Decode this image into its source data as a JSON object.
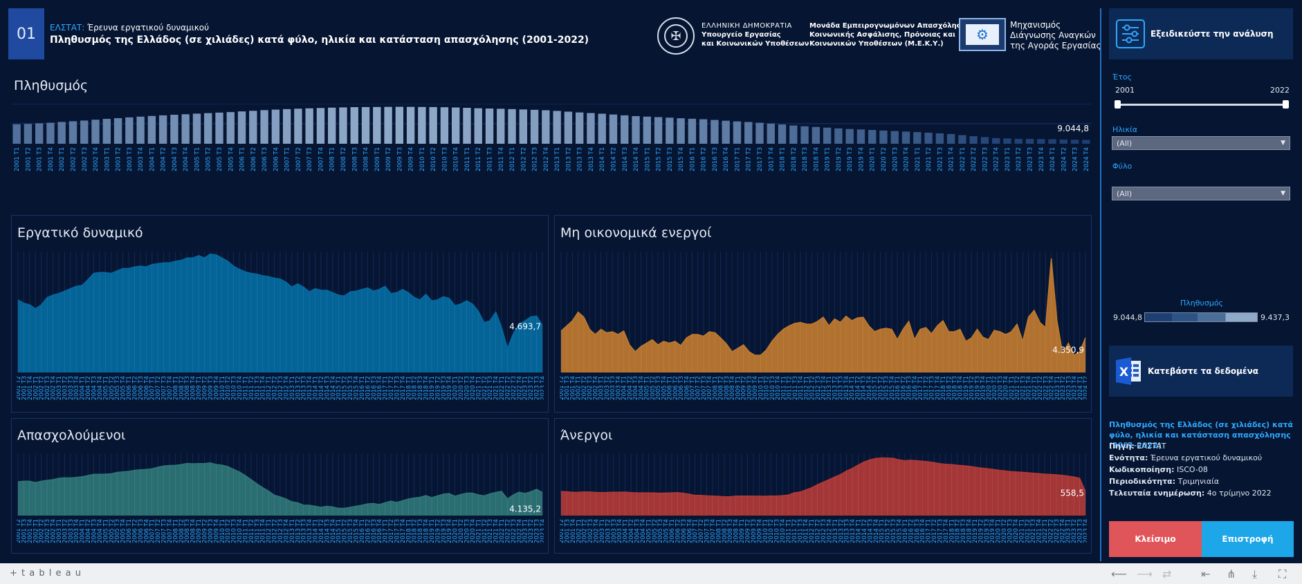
{
  "header": {
    "number": "01",
    "source_prefix": "ΕΛΣΤΑΤ:",
    "source_rest": " Έρευνα εργατικού δυναμικού",
    "title": "Πληθυσμός της Ελλάδος (σε χιλιάδες) κατά φύλο, ηλικία και κατάσταση απασχόλησης (2001-2022)",
    "ministry_line1": "ΕΛΛΗΝΙΚΗ ΔΗΜΟΚΡΑΤΙΑ",
    "ministry_line2": "Υπουργείο Εργασίας",
    "ministry_line3": "και Κοινωνικών Υποθέσεων",
    "unit_line1": "Μονάδα Εμπειρογνωμόνων Απασχόλησης,",
    "unit_line2": "Κοινωνικής Ασφάλισης, Πρόνοιας και",
    "unit_line3": "Κοινωνικών Υποθέσεων (Μ.Ε.Κ.Υ.)",
    "mech_line1": "Μηχανισμός",
    "mech_line2": "Διάγνωσης Αναγκών",
    "mech_line3": "της Αγοράς Εργασίας",
    "crest_icon": "crest-icon",
    "mech_icon": "gear-icon"
  },
  "sidebar": {
    "refine_label": "Εξειδικεύστε την ανάλυση",
    "refine_icon": "sliders-icon",
    "year_label": "Έτος",
    "year_min": "2001",
    "year_max": "2022",
    "age_label": "Ηλικία",
    "age_value": "(All)",
    "sex_label": "Φύλο",
    "sex_value": "(All)",
    "legend_title": "Πληθυσμός",
    "legend_min": "9.044,8",
    "legend_max": "9.437,3",
    "download_label": "Κατεβάστε τα δεδομένα",
    "download_icon": "excel-icon",
    "info_title": "Πληθυσμός της Ελλάδος (σε χιλιάδες) κατά φύλο, ηλικία και κατάσταση απασχόλησης (2001-2022)",
    "info": [
      {
        "k": "Πηγή:",
        "v": " ΕΛΣΤΑΤ"
      },
      {
        "k": "Ενότητα:",
        "v": " Έρευνα εργατικού δυναμικού"
      },
      {
        "k": "Κωδικοποίηση:",
        "v": " ISCO-08"
      },
      {
        "k": "Περιοδικότητα:",
        "v": " Τριμηνιαία"
      },
      {
        "k": "Τελευταία ενημέρωση:",
        "v": " 4ο τρίμηνο 2022"
      }
    ],
    "close_label": "Κλείσιμο",
    "back_label": "Επιστροφή"
  },
  "footer": {
    "brand": "+ t a b l e a u"
  },
  "colors": {
    "bg": "#061532",
    "population_low": "#1d3f72",
    "population_high": "#8fa9c9",
    "labour": "#046aa0",
    "inactive": "#c07a2f",
    "employed": "#2f7677",
    "unemployed": "#b23a37",
    "close_btn": "#e0555a",
    "back_btn": "#1da6e8"
  },
  "chart_data": [
    {
      "type": "bar",
      "title": "Πληθυσμός",
      "x_start": "2001 T1",
      "x_end": "2022 T4",
      "values": [
        9228,
        9232,
        9240,
        9246,
        9256,
        9264,
        9272,
        9282,
        9292,
        9300,
        9309,
        9318,
        9326,
        9333,
        9340,
        9346,
        9353,
        9359,
        9365,
        9371,
        9379,
        9386,
        9394,
        9400,
        9406,
        9411,
        9415,
        9419,
        9423,
        9426,
        9429,
        9430,
        9431,
        9432,
        9433,
        9432,
        9431,
        9430,
        9428,
        9425,
        9421,
        9416,
        9413,
        9410,
        9406,
        9402,
        9398,
        9393,
        9385,
        9376,
        9367,
        9360,
        9352,
        9343,
        9333,
        9324,
        9318,
        9312,
        9306,
        9299,
        9293,
        9287,
        9279,
        9270,
        9262,
        9255,
        9246,
        9237,
        9226,
        9214,
        9205,
        9197,
        9189,
        9180,
        9173,
        9168,
        9162,
        9155,
        9149,
        9143,
        9137,
        9130,
        9122,
        9114,
        9101,
        9089,
        9078,
        9066,
        9062,
        9058,
        9058,
        9055,
        9053,
        9050,
        9047,
        9044.8
      ],
      "last_label": "9.044,8",
      "ylim": [
        9044.8,
        9437.3
      ]
    },
    {
      "type": "area",
      "title": "Εργατικό δυναμικό",
      "x_start": "2001 T2",
      "x_end": "2022 T4",
      "values": [
        4850,
        4830,
        4820,
        4795,
        4820,
        4865,
        4880,
        4890,
        4905,
        4920,
        4935,
        4940,
        4975,
        5015,
        5020,
        5020,
        5015,
        5030,
        5045,
        5045,
        5055,
        5060,
        5055,
        5070,
        5075,
        5080,
        5080,
        5090,
        5095,
        5110,
        5110,
        5125,
        5110,
        5135,
        5130,
        5110,
        5090,
        5060,
        5040,
        5025,
        5015,
        5010,
        5000,
        4995,
        4985,
        4980,
        4960,
        4930,
        4950,
        4930,
        4900,
        4920,
        4910,
        4910,
        4895,
        4880,
        4875,
        4900,
        4905,
        4915,
        4925,
        4905,
        4915,
        4935,
        4890,
        4895,
        4915,
        4895,
        4865,
        4850,
        4885,
        4845,
        4850,
        4870,
        4860,
        4815,
        4825,
        4845,
        4825,
        4780,
        4710,
        4720,
        4775,
        4680,
        4550,
        4640,
        4700,
        4720,
        4745,
        4750,
        4693.7
      ],
      "last_label": "4.693,7",
      "ylim": [
        4400,
        5150
      ]
    },
    {
      "type": "area",
      "title": "Μη οικονομικά ενεργοί",
      "x_start": "2001 T2",
      "x_end": "2022 T4",
      "values": [
        4370,
        4385,
        4400,
        4425,
        4410,
        4375,
        4360,
        4375,
        4365,
        4368,
        4360,
        4370,
        4330,
        4310,
        4325,
        4335,
        4345,
        4330,
        4340,
        4335,
        4340,
        4328,
        4350,
        4360,
        4360,
        4355,
        4368,
        4365,
        4350,
        4333,
        4310,
        4320,
        4330,
        4310,
        4300,
        4300,
        4315,
        4340,
        4360,
        4375,
        4385,
        4392,
        4395,
        4390,
        4390,
        4398,
        4410,
        4385,
        4405,
        4395,
        4413,
        4400,
        4408,
        4410,
        4385,
        4368,
        4375,
        4378,
        4375,
        4345,
        4375,
        4398,
        4345,
        4375,
        4380,
        4362,
        4385,
        4400,
        4368,
        4368,
        4375,
        4340,
        4350,
        4375,
        4352,
        4345,
        4372,
        4368,
        4360,
        4368,
        4390,
        4340,
        4410,
        4430,
        4395,
        4380,
        4580,
        4400,
        4305,
        4335,
        4300,
        4310,
        4350.9
      ],
      "last_label": "4.350,9",
      "ylim": [
        4250,
        4600
      ]
    },
    {
      "type": "area",
      "title": "Απασχολούμενοι",
      "x_start": "2001 T2",
      "x_end": "2022 T4",
      "values": [
        4290,
        4298,
        4298,
        4278,
        4298,
        4310,
        4320,
        4340,
        4348,
        4345,
        4352,
        4362,
        4380,
        4398,
        4398,
        4400,
        4405,
        4425,
        4432,
        4440,
        4455,
        4462,
        4468,
        4478,
        4500,
        4518,
        4525,
        4528,
        4538,
        4555,
        4550,
        4552,
        4552,
        4562,
        4540,
        4530,
        4510,
        4470,
        4432,
        4380,
        4320,
        4260,
        4205,
        4155,
        4095,
        4070,
        4040,
        4000,
        3985,
        3950,
        3950,
        3935,
        3920,
        3935,
        3925,
        3905,
        3905,
        3920,
        3935,
        3950,
        3970,
        3975,
        3960,
        3985,
        4010,
        3990,
        4015,
        4040,
        4055,
        4065,
        4090,
        4060,
        4085,
        4110,
        4120,
        4080,
        4105,
        4125,
        4125,
        4100,
        4085,
        4115,
        4135,
        4150,
        4040,
        4100,
        4140,
        4120,
        4145,
        4180,
        4135.2
      ],
      "last_label": "4.135,2",
      "ylim": [
        3800,
        4700
      ]
    },
    {
      "type": "area",
      "title": "Άνεργοι",
      "x_start": "2001 T2",
      "x_end": "2022 T4",
      "values": [
        560,
        555,
        542,
        545,
        552,
        550,
        540,
        535,
        540,
        545,
        545,
        548,
        535,
        530,
        530,
        530,
        528,
        522,
        525,
        530,
        535,
        520,
        500,
        470,
        470,
        460,
        455,
        450,
        440,
        440,
        455,
        455,
        455,
        452,
        452,
        450,
        458,
        455,
        465,
        480,
        530,
        550,
        600,
        650,
        720,
        780,
        840,
        900,
        960,
        1040,
        1100,
        1180,
        1250,
        1300,
        1330,
        1345,
        1340,
        1335,
        1300,
        1280,
        1290,
        1280,
        1270,
        1255,
        1235,
        1210,
        1195,
        1190,
        1175,
        1165,
        1150,
        1130,
        1110,
        1095,
        1080,
        1060,
        1045,
        1030,
        1020,
        1010,
        1000,
        990,
        980,
        965,
        960,
        950,
        940,
        920,
        900,
        870,
        558.5
      ],
      "last_label": "558,5",
      "ylim": [
        0,
        1450
      ]
    }
  ]
}
